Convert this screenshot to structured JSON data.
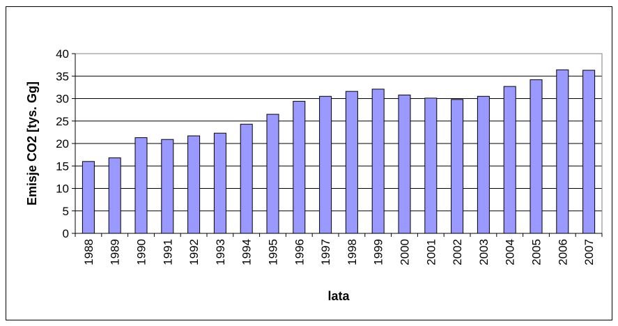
{
  "chart_data": {
    "type": "bar",
    "title": "",
    "xlabel": "lata",
    "ylabel": "Emisje CO2 [tys. Gg]",
    "categories": [
      "1988",
      "1989",
      "1990",
      "1991",
      "1992",
      "1993",
      "1994",
      "1995",
      "1996",
      "1997",
      "1998",
      "1999",
      "2000",
      "2001",
      "2002",
      "2003",
      "2004",
      "2005",
      "2006",
      "2007"
    ],
    "values": [
      16.0,
      16.8,
      21.3,
      20.9,
      21.7,
      22.3,
      24.3,
      26.5,
      29.4,
      30.5,
      31.6,
      32.1,
      30.8,
      30.1,
      29.8,
      30.5,
      32.7,
      34.2,
      36.4,
      36.3
    ],
    "yticks": [
      0,
      5,
      10,
      15,
      20,
      25,
      30,
      35,
      40
    ],
    "ylim": [
      0,
      40
    ],
    "grid": true,
    "legend": "none",
    "colors": {
      "bar_fill": "#9999ff",
      "bar_stroke": "#000000",
      "plot_background": "#ffffff",
      "grid": "#000000"
    }
  }
}
